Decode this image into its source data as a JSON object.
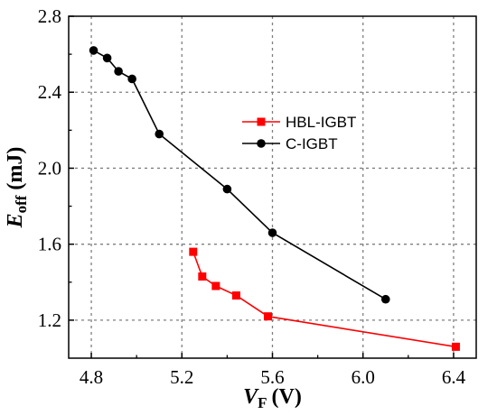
{
  "chart_data": {
    "type": "line",
    "xlabel": {
      "main": "V",
      "sub": "F",
      "unit": "(V)"
    },
    "ylabel": {
      "main": "E",
      "sub": "off",
      "unit": "(mJ)"
    },
    "xlim": [
      4.7,
      6.5
    ],
    "ylim": [
      1.0,
      2.8
    ],
    "xticks": [
      4.8,
      5.2,
      5.6,
      6.0,
      6.4
    ],
    "yticks": [
      1.2,
      1.6,
      2.0,
      2.4,
      2.8
    ],
    "xtick_labels": [
      "4.8",
      "5.2",
      "5.6",
      "6.0",
      "6.4"
    ],
    "ytick_labels": [
      "1.2",
      "1.6",
      "2.0",
      "2.4",
      "2.8"
    ],
    "grid": true,
    "legend_position": "center-right",
    "series": [
      {
        "name": "HBL-IGBT",
        "color": "#ff0000",
        "marker": "square",
        "x": [
          5.25,
          5.29,
          5.35,
          5.44,
          5.58,
          6.41
        ],
        "y": [
          1.56,
          1.43,
          1.38,
          1.33,
          1.22,
          1.06
        ]
      },
      {
        "name": "C-IGBT",
        "color": "#000000",
        "marker": "circle",
        "x": [
          4.81,
          4.87,
          4.92,
          4.98,
          5.1,
          5.4,
          5.6,
          6.1
        ],
        "y": [
          2.62,
          2.58,
          2.51,
          2.47,
          2.18,
          1.89,
          1.66,
          1.31
        ]
      }
    ]
  }
}
